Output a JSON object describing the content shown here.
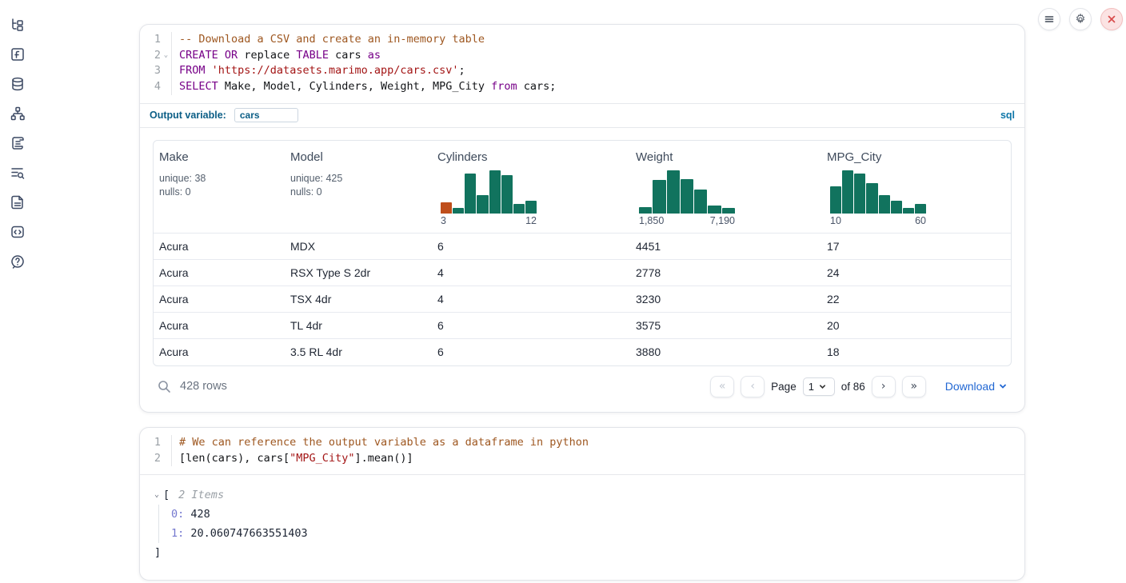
{
  "topbar": {
    "buttons": [
      {
        "name": "menu",
        "icon": "hamburger-menu-icon"
      },
      {
        "name": "settings",
        "icon": "gear-icon"
      },
      {
        "name": "shutdown",
        "icon": "close-x-icon"
      }
    ]
  },
  "sidebar": {
    "icons": [
      "file-tree",
      "variables-f",
      "data-sources-database",
      "dependency-graph",
      "scratchpad-scroll",
      "logs-list-search",
      "documentation-file",
      "snippets-code",
      "help-question-bubble"
    ]
  },
  "colors": {
    "hist_teal": "#11735E",
    "hist_orange": "#BF4E1B",
    "accent_blue": "#0B5E86",
    "link_blue": "#2167D3"
  },
  "sql_cell": {
    "code_lines": [
      {
        "n": "1",
        "fold": false,
        "tokens": [
          {
            "t": "-- Download a CSV and create an in-memory table",
            "c": "com"
          }
        ]
      },
      {
        "n": "2",
        "fold": true,
        "tokens": [
          {
            "t": "CREATE",
            "c": "kw"
          },
          {
            "t": " ",
            "c": "pl"
          },
          {
            "t": "OR",
            "c": "kw"
          },
          {
            "t": " replace ",
            "c": "pl"
          },
          {
            "t": "TABLE",
            "c": "kw"
          },
          {
            "t": " cars ",
            "c": "pl"
          },
          {
            "t": "as",
            "c": "kw"
          }
        ]
      },
      {
        "n": "3",
        "fold": false,
        "tokens": [
          {
            "t": "FROM",
            "c": "kw"
          },
          {
            "t": " ",
            "c": "pl"
          },
          {
            "t": "'https://datasets.marimo.app/cars.csv'",
            "c": "str"
          },
          {
            "t": ";",
            "c": "pl"
          }
        ]
      },
      {
        "n": "4",
        "fold": false,
        "tokens": [
          {
            "t": "SELECT",
            "c": "kw"
          },
          {
            "t": " Make, Model, Cylinders, Weight, MPG_City ",
            "c": "pl"
          },
          {
            "t": "from",
            "c": "kw"
          },
          {
            "t": " cars;",
            "c": "pl"
          }
        ]
      }
    ],
    "output_variable_label": "Output variable:",
    "output_variable_value": "cars",
    "language_badge": "sql"
  },
  "table": {
    "columns": [
      {
        "name": "Make",
        "stats": [
          "unique: 38",
          "nulls: 0"
        ]
      },
      {
        "name": "Model",
        "stats": [
          "unique: 425",
          "nulls: 0"
        ]
      },
      {
        "name": "Cylinders",
        "hist": {
          "heights": [
            25,
            12,
            92,
            42,
            100,
            88,
            22,
            30
          ],
          "highlight_first": true,
          "min_label": "3",
          "max_label": "12"
        }
      },
      {
        "name": "Weight",
        "hist": {
          "heights": [
            14,
            78,
            100,
            80,
            55,
            18,
            13
          ],
          "highlight_first": false,
          "min_label": "1,850",
          "max_label": "7,190"
        }
      },
      {
        "name": "MPG_City",
        "hist": {
          "heights": [
            62,
            100,
            92,
            70,
            42,
            30,
            13,
            22
          ],
          "highlight_first": false,
          "min_label": "10",
          "max_label": "60"
        }
      }
    ],
    "rows": [
      [
        "Acura",
        "MDX",
        "6",
        "4451",
        "17"
      ],
      [
        "Acura",
        "RSX Type S 2dr",
        "4",
        "2778",
        "24"
      ],
      [
        "Acura",
        "TSX 4dr",
        "4",
        "3230",
        "22"
      ],
      [
        "Acura",
        "TL 4dr",
        "6",
        "3575",
        "20"
      ],
      [
        "Acura",
        "3.5 RL 4dr",
        "6",
        "3880",
        "18"
      ]
    ],
    "footer": {
      "row_count": "428 rows",
      "page_label": "Page",
      "page_value": "1",
      "of_label": "of 86",
      "first_glyph": "«",
      "prev_glyph": "‹",
      "next_glyph": "›",
      "last_glyph": "»",
      "download_label": "Download"
    }
  },
  "python_cell": {
    "code_lines": [
      {
        "n": "1",
        "fold": false,
        "tokens": [
          {
            "t": "# We can reference the output variable as a dataframe in python",
            "c": "com"
          }
        ]
      },
      {
        "n": "2",
        "fold": false,
        "tokens": [
          {
            "t": "[len(cars), cars[",
            "c": "pl"
          },
          {
            "t": "\"MPG_City\"",
            "c": "str"
          },
          {
            "t": "].mean()]",
            "c": "pl"
          }
        ]
      }
    ],
    "output": {
      "open_bracket": "[",
      "items_label": "2 Items",
      "entries": [
        {
          "index": "0",
          "value": "428"
        },
        {
          "index": "1",
          "value": "20.060747663551403"
        }
      ],
      "close_bracket": "]"
    }
  },
  "chart_data": [
    {
      "type": "bar",
      "title": "Cylinders column histogram",
      "x_range_labels": [
        "3",
        "12"
      ],
      "values_relative_pct": [
        25,
        12,
        92,
        42,
        100,
        88,
        22,
        30
      ],
      "first_bar_color": "#BF4E1B",
      "bar_color": "#11735E"
    },
    {
      "type": "bar",
      "title": "Weight column histogram",
      "x_range_labels": [
        "1,850",
        "7,190"
      ],
      "values_relative_pct": [
        14,
        78,
        100,
        80,
        55,
        18,
        13
      ],
      "bar_color": "#11735E"
    },
    {
      "type": "bar",
      "title": "MPG_City column histogram",
      "x_range_labels": [
        "10",
        "60"
      ],
      "values_relative_pct": [
        62,
        100,
        92,
        70,
        42,
        30,
        13,
        22
      ],
      "bar_color": "#11735E"
    }
  ]
}
